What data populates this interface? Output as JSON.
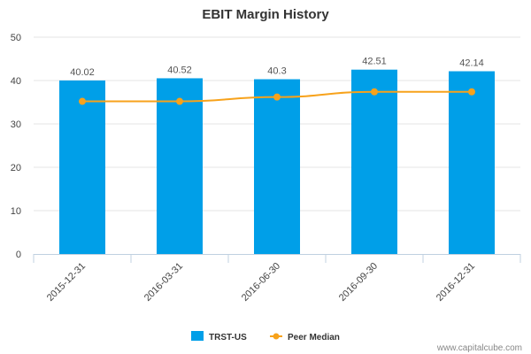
{
  "chart_data": {
    "type": "bar",
    "title": "EBIT Margin History",
    "xlabel": "",
    "ylabel": "",
    "categories": [
      "2015-12-31",
      "2016-03-31",
      "2016-06-30",
      "2016-09-30",
      "2016-12-31"
    ],
    "ylim": [
      0,
      50
    ],
    "yticks": [
      0,
      10,
      20,
      30,
      40,
      50
    ],
    "grid": true,
    "legend_position": "bottom",
    "series": [
      {
        "name": "TRST-US",
        "type": "bar",
        "color": "#009fe8",
        "values": [
          40.02,
          40.52,
          40.3,
          42.51,
          42.14
        ],
        "data_labels": [
          "40.02",
          "40.52",
          "40.3",
          "42.51",
          "42.14"
        ]
      },
      {
        "name": "Peer Median",
        "type": "line",
        "color": "#f7a21b",
        "values": [
          35.2,
          35.2,
          36.2,
          37.4,
          37.4
        ]
      }
    ]
  },
  "credit": "www.capitalcube.com"
}
